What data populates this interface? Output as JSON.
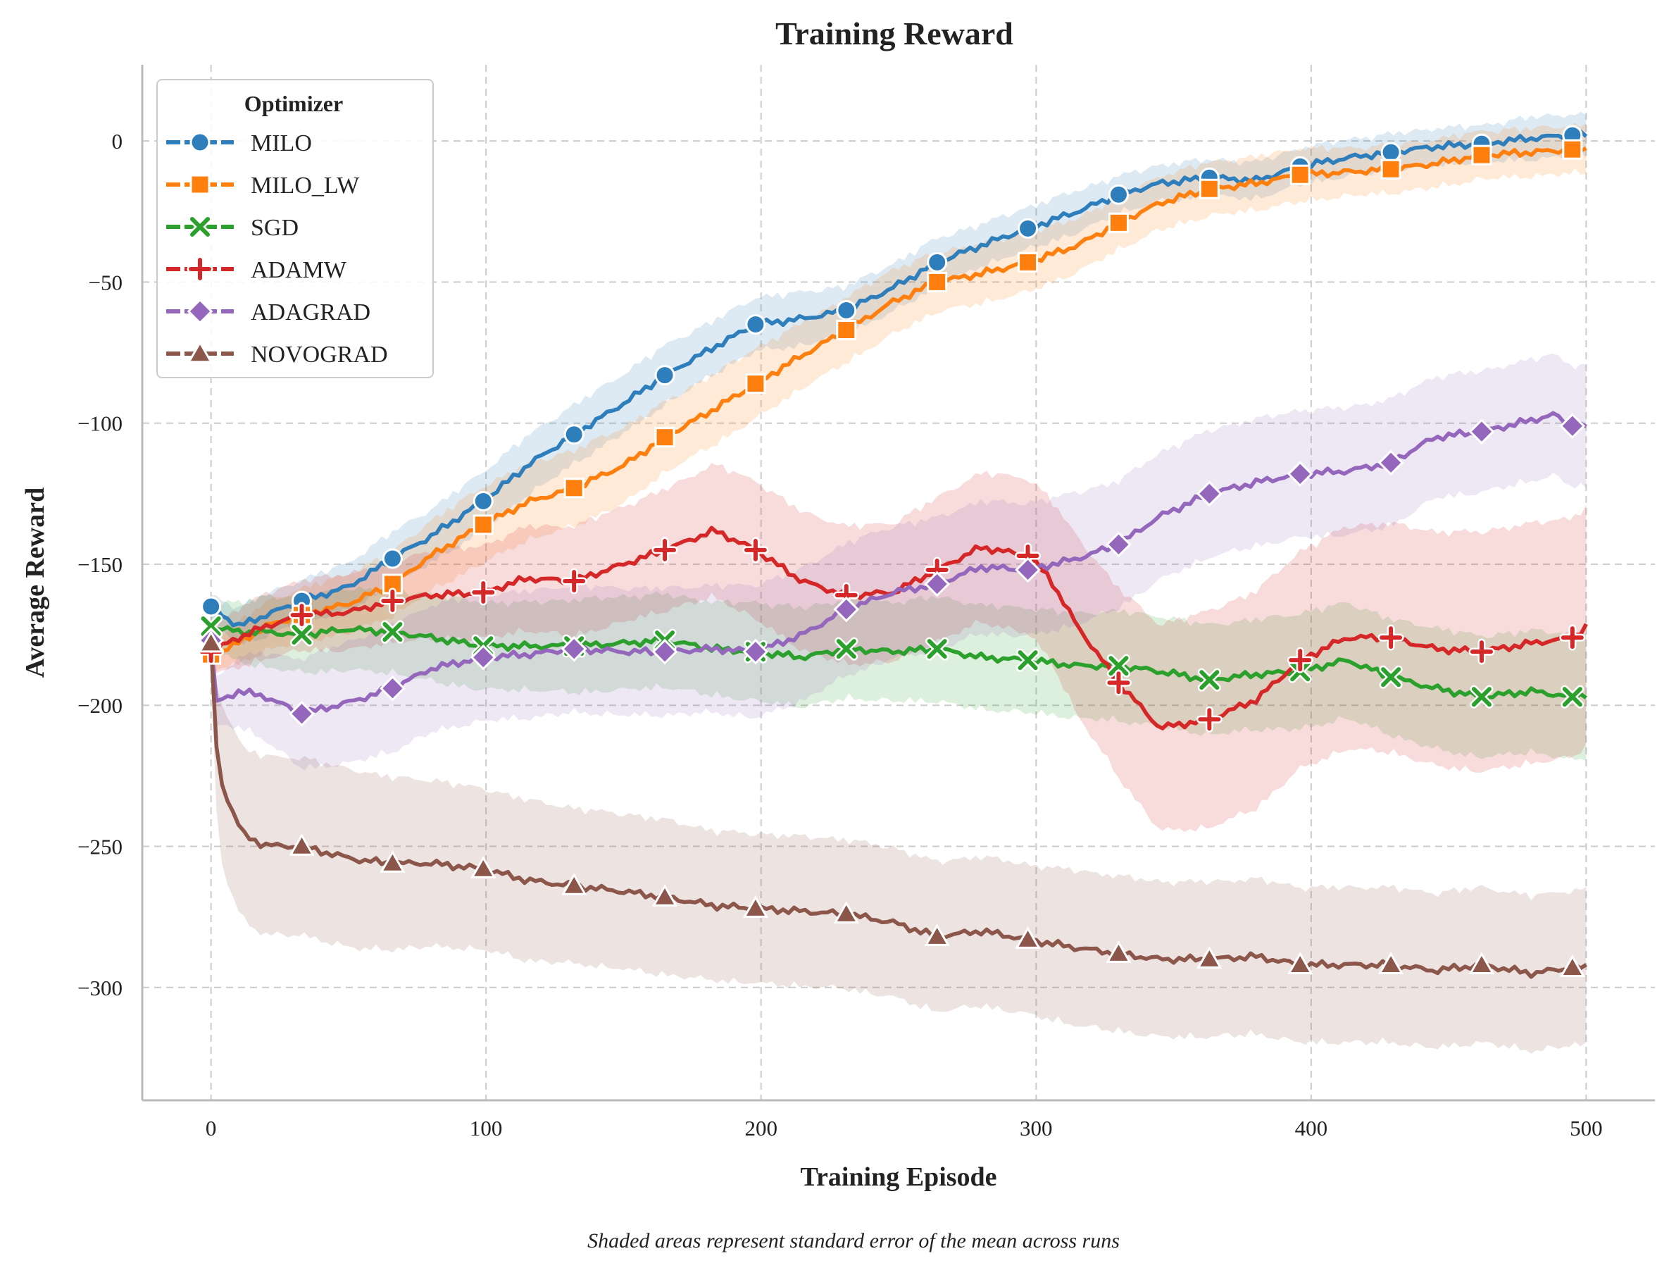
{
  "chart_data": {
    "type": "line",
    "title": "Training Reward",
    "xlabel": "Training Episode",
    "ylabel": "Average Reward",
    "caption": "Shaded areas represent standard error of the mean across runs",
    "xlim": [
      -25,
      525
    ],
    "ylim": [
      -340,
      27
    ],
    "xticks": [
      0,
      100,
      200,
      300,
      400,
      500
    ],
    "yticks": [
      0,
      -50,
      -100,
      -150,
      -200,
      -250,
      -300
    ],
    "grid": true,
    "legend": {
      "title": "Optimizer",
      "placement": "top-left"
    },
    "series": [
      {
        "name": "MILO",
        "color": "#2e7ebc",
        "marker": "circle",
        "x": [
          0,
          10,
          20,
          33,
          50,
          66,
          80,
          100,
          115,
          132,
          150,
          165,
          183,
          198,
          215,
          231,
          248,
          264,
          280,
          297,
          315,
          330,
          345,
          363,
          380,
          396,
          413,
          429,
          445,
          462,
          480,
          495,
          500
        ],
        "y": [
          -165,
          -172,
          -168,
          -163,
          -158,
          -148,
          -140,
          -127,
          -115,
          -104,
          -93,
          -83,
          -73,
          -65,
          -63,
          -60,
          -52,
          -43,
          -37,
          -31,
          -25,
          -19,
          -15,
          -13,
          -14,
          -9,
          -6,
          -4,
          -2,
          -1,
          1,
          2,
          2
        ],
        "err": [
          4,
          6,
          7,
          7,
          8,
          9,
          9,
          10,
          10,
          10,
          10,
          10,
          9,
          9,
          9,
          8,
          8,
          8,
          7,
          7,
          7,
          6,
          6,
          6,
          6,
          6,
          6,
          6,
          6,
          6,
          7,
          7,
          7
        ],
        "markers_x": [
          0,
          33,
          66,
          99,
          132,
          165,
          198,
          231,
          264,
          297,
          330,
          363,
          396,
          429,
          462,
          495
        ]
      },
      {
        "name": "MILO_LW",
        "color": "#ff7f0e",
        "marker": "square",
        "x": [
          0,
          10,
          20,
          33,
          50,
          66,
          80,
          99,
          115,
          132,
          150,
          165,
          183,
          198,
          215,
          231,
          248,
          264,
          280,
          297,
          315,
          330,
          345,
          363,
          380,
          396,
          413,
          429,
          445,
          462,
          480,
          495,
          500
        ],
        "y": [
          -182,
          -178,
          -172,
          -168,
          -164,
          -157,
          -147,
          -136,
          -128,
          -123,
          -115,
          -105,
          -95,
          -86,
          -76,
          -67,
          -57,
          -50,
          -47,
          -43,
          -37,
          -29,
          -22,
          -17,
          -15,
          -12,
          -11,
          -10,
          -8,
          -5,
          -4,
          -3,
          -3
        ],
        "err": [
          5,
          7,
          8,
          9,
          10,
          11,
          12,
          13,
          13,
          13,
          13,
          12,
          12,
          12,
          11,
          11,
          11,
          10,
          10,
          10,
          9,
          9,
          9,
          9,
          9,
          9,
          8,
          8,
          8,
          8,
          8,
          8,
          8
        ],
        "markers_x": [
          0,
          33,
          66,
          99,
          132,
          165,
          198,
          231,
          264,
          297,
          330,
          363,
          396,
          429,
          462,
          495
        ]
      },
      {
        "name": "SGD",
        "color": "#2ca02c",
        "marker": "x",
        "x": [
          0,
          10,
          20,
          33,
          50,
          66,
          80,
          99,
          115,
          132,
          150,
          165,
          183,
          198,
          215,
          231,
          248,
          264,
          280,
          297,
          315,
          330,
          345,
          363,
          380,
          396,
          413,
          429,
          445,
          462,
          480,
          495,
          500
        ],
        "y": [
          -172,
          -174,
          -174,
          -175,
          -173,
          -174,
          -176,
          -179,
          -179,
          -179,
          -178,
          -177,
          -180,
          -181,
          -183,
          -180,
          -181,
          -180,
          -183,
          -184,
          -186,
          -186,
          -188,
          -191,
          -189,
          -188,
          -184,
          -190,
          -194,
          -197,
          -195,
          -197,
          -196
        ],
        "err": [
          8,
          10,
          12,
          13,
          14,
          14,
          15,
          15,
          15,
          16,
          16,
          16,
          16,
          17,
          17,
          17,
          17,
          18,
          18,
          18,
          18,
          19,
          19,
          19,
          19,
          20,
          20,
          20,
          21,
          21,
          21,
          22,
          22
        ],
        "markers_x": [
          0,
          33,
          66,
          99,
          132,
          165,
          198,
          231,
          264,
          297,
          330,
          363,
          396,
          429,
          462,
          495
        ]
      },
      {
        "name": "ADAMW",
        "color": "#d62728",
        "marker": "plus",
        "x": [
          0,
          10,
          20,
          33,
          50,
          66,
          80,
          99,
          115,
          132,
          150,
          165,
          183,
          198,
          215,
          231,
          248,
          264,
          280,
          297,
          305,
          315,
          330,
          345,
          363,
          380,
          396,
          413,
          429,
          445,
          462,
          480,
          495,
          500
        ],
        "y": [
          -181,
          -176,
          -172,
          -168,
          -167,
          -163,
          -161,
          -160,
          -155,
          -156,
          -150,
          -145,
          -138,
          -145,
          -156,
          -161,
          -160,
          -152,
          -144,
          -147,
          -155,
          -172,
          -192,
          -208,
          -205,
          -198,
          -184,
          -176,
          -176,
          -180,
          -181,
          -178,
          -176,
          -172
        ],
        "err": [
          8,
          10,
          11,
          12,
          13,
          14,
          15,
          16,
          18,
          19,
          20,
          21,
          23,
          24,
          24,
          24,
          24,
          25,
          26,
          27,
          28,
          31,
          33,
          36,
          38,
          38,
          38,
          39,
          40,
          41,
          42,
          42,
          42,
          42
        ],
        "markers_x": [
          0,
          33,
          66,
          99,
          132,
          165,
          198,
          231,
          264,
          297,
          330,
          363,
          396,
          429,
          462,
          495
        ]
      },
      {
        "name": "ADAGRAD",
        "color": "#9467bd",
        "marker": "diamond",
        "x": [
          0,
          2,
          10,
          20,
          33,
          50,
          66,
          80,
          99,
          115,
          132,
          150,
          165,
          183,
          198,
          215,
          231,
          248,
          264,
          280,
          297,
          315,
          330,
          345,
          363,
          380,
          396,
          413,
          429,
          445,
          462,
          480,
          488,
          495,
          500
        ],
        "y": [
          -177,
          -199,
          -195,
          -197,
          -203,
          -199,
          -194,
          -187,
          -183,
          -182,
          -180,
          -181,
          -181,
          -180,
          -181,
          -175,
          -166,
          -160,
          -157,
          -151,
          -152,
          -148,
          -143,
          -133,
          -125,
          -121,
          -118,
          -117,
          -114,
          -105,
          -103,
          -99,
          -97,
          -101,
          -101
        ],
        "err": [
          5,
          8,
          12,
          15,
          19,
          21,
          22,
          22,
          22,
          22,
          22,
          22,
          22,
          22,
          23,
          23,
          23,
          23,
          23,
          23,
          23,
          23,
          22,
          22,
          22,
          22,
          22,
          22,
          22,
          21,
          21,
          21,
          21,
          21,
          21
        ],
        "markers_x": [
          0,
          33,
          66,
          99,
          132,
          165,
          198,
          231,
          264,
          297,
          330,
          363,
          396,
          429,
          462,
          495
        ]
      },
      {
        "name": "NOVOGRAD",
        "color": "#8c564b",
        "marker": "triangle",
        "x": [
          0,
          2,
          4,
          8,
          12,
          18,
          25,
          33,
          45,
          55,
          66,
          80,
          99,
          115,
          132,
          150,
          165,
          183,
          198,
          215,
          231,
          248,
          264,
          280,
          297,
          315,
          330,
          345,
          363,
          380,
          396,
          413,
          429,
          445,
          462,
          480,
          495,
          500
        ],
        "y": [
          -178,
          -215,
          -228,
          -238,
          -246,
          -249,
          -250,
          -250,
          -253,
          -255,
          -256,
          -256,
          -258,
          -262,
          -264,
          -266,
          -268,
          -271,
          -272,
          -273,
          -274,
          -277,
          -282,
          -280,
          -283,
          -286,
          -288,
          -290,
          -290,
          -289,
          -292,
          -292,
          -292,
          -294,
          -292,
          -295,
          -293,
          -293
        ],
        "err": [
          10,
          22,
          28,
          30,
          30,
          31,
          31,
          31,
          31,
          31,
          30,
          29,
          28,
          28,
          27,
          27,
          27,
          26,
          26,
          26,
          26,
          26,
          26,
          26,
          26,
          27,
          27,
          27,
          27,
          27,
          27,
          27,
          27,
          27,
          27,
          27,
          27,
          27
        ],
        "markers_x": [
          0,
          33,
          66,
          99,
          132,
          165,
          198,
          231,
          264,
          297,
          330,
          363,
          396,
          429,
          462,
          495
        ]
      }
    ]
  }
}
